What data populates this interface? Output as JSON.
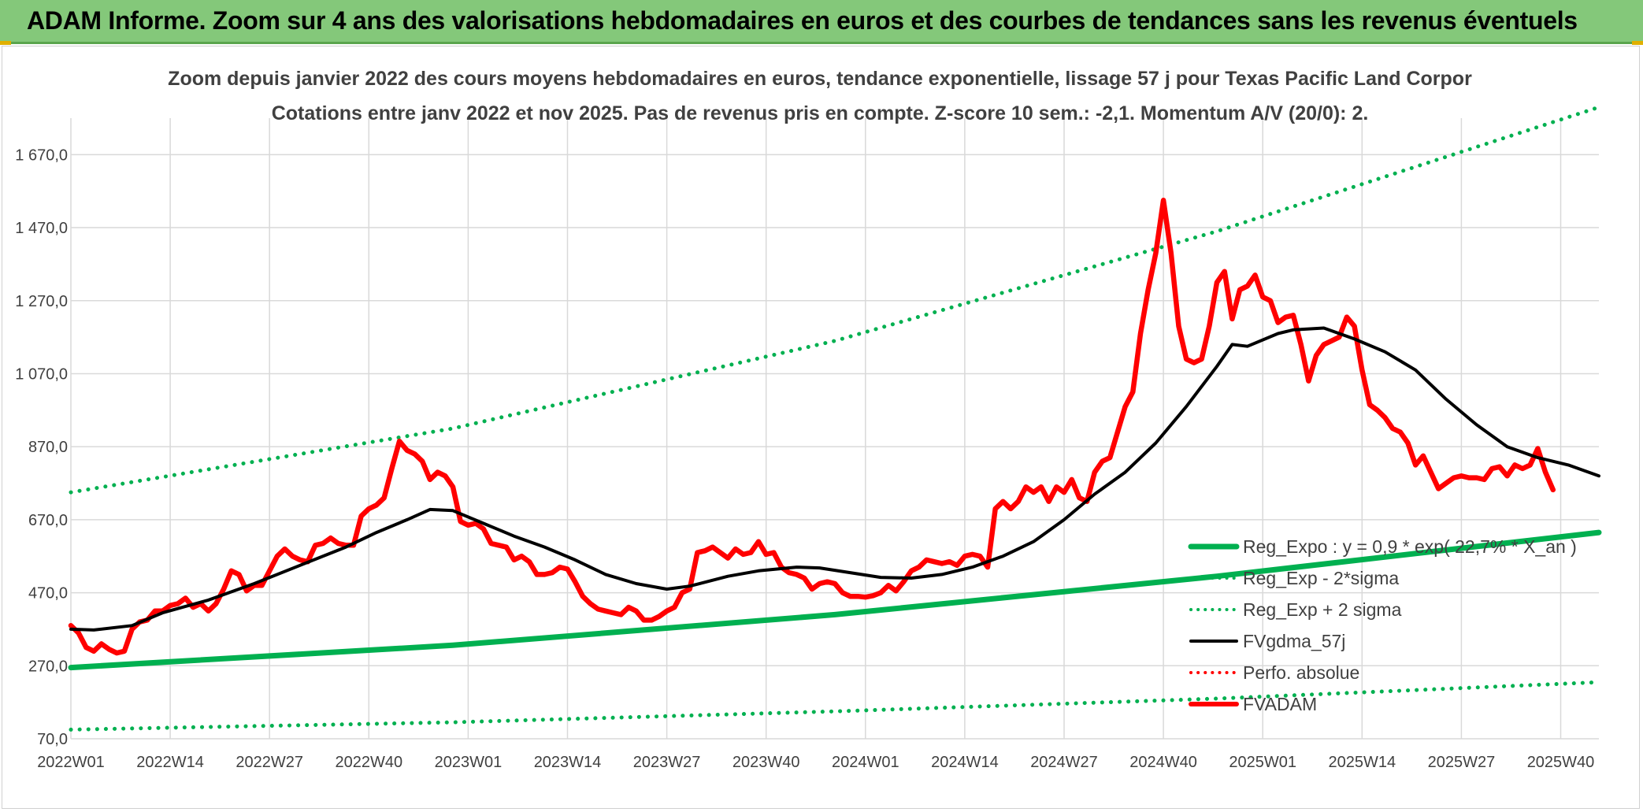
{
  "banner": {
    "title": "ADAM Informe. Zoom sur 4 ans des valorisations hebdomadaires en euros et des courbes de tendances sans les revenus éventuels"
  },
  "colors": {
    "banner_bg": "#84c87a",
    "reg_green": "#00b050",
    "black": "#000000",
    "red": "#ff0000",
    "grid": "#d9d9d9",
    "text": "#404040"
  },
  "chart_data": {
    "type": "line",
    "title_line1": "Zoom depuis janvier 2022 des cours moyens hebdomadaires en euros, tendance exponentielle, lissage 57 j pour Texas Pacific Land Corpor",
    "title_line2": "Cotations entre janv 2022 et nov 2025. Pas de revenus pris en compte. Z-score 10 sem.: -2,1. Momentum A/V (20/0): 2.",
    "xlabel": "",
    "ylabel": "",
    "ylim": [
      70,
      1770
    ],
    "y_ticks": [
      "70,0",
      "270,0",
      "470,0",
      "670,0",
      "870,0",
      "1 070,0",
      "1 270,0",
      "1 470,0",
      "1 670,0"
    ],
    "y_tick_values": [
      70,
      270,
      470,
      670,
      870,
      1070,
      1270,
      1470,
      1670
    ],
    "x_range": [
      0,
      200
    ],
    "x_ticks": [
      "2022W01",
      "2022W14",
      "2022W27",
      "2022W40",
      "2023W01",
      "2023W14",
      "2023W27",
      "2023W40",
      "2024W01",
      "2024W14",
      "2024W27",
      "2024W40",
      "2025W01",
      "2025W14",
      "2025W27",
      "2025W40"
    ],
    "x_tick_positions": [
      0,
      13,
      26,
      39,
      52,
      65,
      78,
      91,
      104,
      117,
      130,
      143,
      156,
      169,
      182,
      195
    ],
    "legend": {
      "position": "right",
      "entries": [
        {
          "name": "Reg_Expo : y = 0,9 * exp( 22,7% * X_an )",
          "style": "solid",
          "color": "#00b050"
        },
        {
          "name": "Reg_Exp - 2*sigma",
          "style": "dotted",
          "color": "#00b050"
        },
        {
          "name": "Reg_Exp + 2 sigma",
          "style": "dotted",
          "color": "#00b050"
        },
        {
          "name": "FVgdma_57j",
          "style": "solid",
          "color": "#000000"
        },
        {
          "name": "Perfo. absolue",
          "style": "dotted",
          "color": "#ff0000"
        },
        {
          "name": "FVADAM",
          "style": "solid",
          "color": "#ff0000"
        }
      ]
    },
    "series": [
      {
        "name": "Reg_Expo : y = 0,9 * exp( 22,7% * X_an )",
        "style": "solid",
        "points": [
          [
            0,
            265
          ],
          [
            50,
            326
          ],
          [
            100,
            410
          ],
          [
            150,
            515
          ],
          [
            200,
            635
          ]
        ]
      },
      {
        "name": "Reg_Exp - 2*sigma",
        "style": "dotted",
        "points": [
          [
            0,
            95
          ],
          [
            50,
            115
          ],
          [
            100,
            145
          ],
          [
            150,
            180
          ],
          [
            200,
            225
          ]
        ]
      },
      {
        "name": "Reg_Exp + 2 sigma",
        "style": "dotted",
        "points": [
          [
            0,
            745
          ],
          [
            50,
            920
          ],
          [
            100,
            1160
          ],
          [
            150,
            1460
          ],
          [
            200,
            1800
          ]
        ]
      },
      {
        "name": "FVgdma_57j",
        "style": "solid",
        "points": [
          [
            0,
            370
          ],
          [
            3,
            368
          ],
          [
            8,
            380
          ],
          [
            12,
            415
          ],
          [
            18,
            450
          ],
          [
            24,
            495
          ],
          [
            30,
            545
          ],
          [
            36,
            595
          ],
          [
            40,
            635
          ],
          [
            44,
            670
          ],
          [
            47,
            698
          ],
          [
            50,
            695
          ],
          [
            54,
            660
          ],
          [
            58,
            625
          ],
          [
            62,
            595
          ],
          [
            66,
            560
          ],
          [
            70,
            520
          ],
          [
            74,
            495
          ],
          [
            78,
            480
          ],
          [
            81,
            488
          ],
          [
            86,
            515
          ],
          [
            90,
            530
          ],
          [
            95,
            540
          ],
          [
            98,
            538
          ],
          [
            102,
            525
          ],
          [
            106,
            512
          ],
          [
            110,
            510
          ],
          [
            114,
            520
          ],
          [
            118,
            540
          ],
          [
            122,
            570
          ],
          [
            126,
            610
          ],
          [
            130,
            670
          ],
          [
            134,
            740
          ],
          [
            138,
            800
          ],
          [
            142,
            880
          ],
          [
            146,
            980
          ],
          [
            150,
            1090
          ],
          [
            152,
            1150
          ],
          [
            154,
            1145
          ],
          [
            158,
            1180
          ],
          [
            160,
            1190
          ],
          [
            164,
            1195
          ],
          [
            168,
            1165
          ],
          [
            172,
            1130
          ],
          [
            176,
            1080
          ],
          [
            180,
            1000
          ],
          [
            184,
            930
          ],
          [
            188,
            870
          ],
          [
            192,
            840
          ],
          [
            196,
            820
          ],
          [
            200,
            790
          ]
        ]
      },
      {
        "name": "FVADAM",
        "style": "solid",
        "points": [
          [
            0,
            380
          ],
          [
            1,
            360
          ],
          [
            2,
            320
          ],
          [
            3,
            310
          ],
          [
            4,
            330
          ],
          [
            5,
            315
          ],
          [
            6,
            305
          ],
          [
            7,
            310
          ],
          [
            8,
            370
          ],
          [
            9,
            390
          ],
          [
            10,
            395
          ],
          [
            11,
            420
          ],
          [
            12,
            420
          ],
          [
            13,
            435
          ],
          [
            14,
            440
          ],
          [
            15,
            455
          ],
          [
            16,
            430
          ],
          [
            17,
            440
          ],
          [
            18,
            420
          ],
          [
            19,
            440
          ],
          [
            20,
            480
          ],
          [
            21,
            530
          ],
          [
            22,
            520
          ],
          [
            23,
            475
          ],
          [
            24,
            490
          ],
          [
            25,
            490
          ],
          [
            26,
            530
          ],
          [
            27,
            570
          ],
          [
            28,
            590
          ],
          [
            29,
            570
          ],
          [
            30,
            560
          ],
          [
            31,
            555
          ],
          [
            32,
            600
          ],
          [
            33,
            605
          ],
          [
            34,
            620
          ],
          [
            35,
            605
          ],
          [
            36,
            600
          ],
          [
            37,
            600
          ],
          [
            38,
            680
          ],
          [
            39,
            700
          ],
          [
            40,
            710
          ],
          [
            41,
            730
          ],
          [
            42,
            810
          ],
          [
            43,
            885
          ],
          [
            44,
            860
          ],
          [
            45,
            850
          ],
          [
            46,
            830
          ],
          [
            47,
            780
          ],
          [
            48,
            800
          ],
          [
            49,
            790
          ],
          [
            50,
            760
          ],
          [
            51,
            665
          ],
          [
            52,
            655
          ],
          [
            53,
            660
          ],
          [
            54,
            645
          ],
          [
            55,
            605
          ],
          [
            56,
            600
          ],
          [
            57,
            595
          ],
          [
            58,
            560
          ],
          [
            59,
            570
          ],
          [
            60,
            555
          ],
          [
            61,
            520
          ],
          [
            62,
            520
          ],
          [
            63,
            525
          ],
          [
            64,
            540
          ],
          [
            65,
            535
          ],
          [
            66,
            500
          ],
          [
            67,
            460
          ],
          [
            68,
            440
          ],
          [
            69,
            425
          ],
          [
            70,
            420
          ],
          [
            71,
            415
          ],
          [
            72,
            410
          ],
          [
            73,
            430
          ],
          [
            74,
            420
          ],
          [
            75,
            395
          ],
          [
            76,
            395
          ],
          [
            77,
            405
          ],
          [
            78,
            420
          ],
          [
            79,
            430
          ],
          [
            80,
            470
          ],
          [
            81,
            480
          ],
          [
            82,
            580
          ],
          [
            83,
            585
          ],
          [
            84,
            595
          ],
          [
            85,
            580
          ],
          [
            86,
            565
          ],
          [
            87,
            590
          ],
          [
            88,
            575
          ],
          [
            89,
            580
          ],
          [
            90,
            610
          ],
          [
            91,
            575
          ],
          [
            92,
            580
          ],
          [
            93,
            540
          ],
          [
            94,
            525
          ],
          [
            95,
            520
          ],
          [
            96,
            510
          ],
          [
            97,
            480
          ],
          [
            98,
            495
          ],
          [
            99,
            500
          ],
          [
            100,
            495
          ],
          [
            101,
            470
          ],
          [
            102,
            460
          ],
          [
            103,
            460
          ],
          [
            104,
            458
          ],
          [
            105,
            462
          ],
          [
            106,
            470
          ],
          [
            107,
            490
          ],
          [
            108,
            475
          ],
          [
            109,
            500
          ],
          [
            110,
            530
          ],
          [
            111,
            540
          ],
          [
            112,
            560
          ],
          [
            113,
            555
          ],
          [
            114,
            550
          ],
          [
            115,
            555
          ],
          [
            116,
            545
          ],
          [
            117,
            570
          ],
          [
            118,
            575
          ],
          [
            119,
            570
          ],
          [
            120,
            540
          ],
          [
            121,
            700
          ],
          [
            122,
            720
          ],
          [
            123,
            700
          ],
          [
            124,
            720
          ],
          [
            125,
            760
          ],
          [
            126,
            745
          ],
          [
            127,
            760
          ],
          [
            128,
            720
          ],
          [
            129,
            760
          ],
          [
            130,
            745
          ],
          [
            131,
            780
          ],
          [
            132,
            730
          ],
          [
            133,
            720
          ],
          [
            134,
            800
          ],
          [
            135,
            830
          ],
          [
            136,
            840
          ],
          [
            137,
            910
          ],
          [
            138,
            980
          ],
          [
            139,
            1020
          ],
          [
            140,
            1180
          ],
          [
            141,
            1300
          ],
          [
            142,
            1400
          ],
          [
            143,
            1545
          ],
          [
            144,
            1400
          ],
          [
            145,
            1200
          ],
          [
            146,
            1110
          ],
          [
            147,
            1100
          ],
          [
            148,
            1110
          ],
          [
            149,
            1200
          ],
          [
            150,
            1320
          ],
          [
            151,
            1350
          ],
          [
            152,
            1220
          ],
          [
            153,
            1300
          ],
          [
            154,
            1310
          ],
          [
            155,
            1340
          ],
          [
            156,
            1280
          ],
          [
            157,
            1270
          ],
          [
            158,
            1210
          ],
          [
            159,
            1225
          ],
          [
            160,
            1230
          ],
          [
            161,
            1150
          ],
          [
            162,
            1050
          ],
          [
            163,
            1120
          ],
          [
            164,
            1150
          ],
          [
            165,
            1160
          ],
          [
            166,
            1170
          ],
          [
            167,
            1225
          ],
          [
            168,
            1200
          ],
          [
            169,
            1080
          ],
          [
            170,
            985
          ],
          [
            171,
            970
          ],
          [
            172,
            950
          ],
          [
            173,
            920
          ],
          [
            174,
            910
          ],
          [
            175,
            880
          ],
          [
            176,
            820
          ],
          [
            177,
            845
          ],
          [
            178,
            800
          ],
          [
            179,
            755
          ],
          [
            180,
            770
          ],
          [
            181,
            785
          ],
          [
            182,
            790
          ],
          [
            183,
            785
          ],
          [
            184,
            785
          ],
          [
            185,
            780
          ],
          [
            186,
            810
          ],
          [
            187,
            815
          ],
          [
            188,
            790
          ],
          [
            189,
            820
          ],
          [
            190,
            810
          ],
          [
            191,
            820
          ],
          [
            192,
            865
          ],
          [
            193,
            800
          ],
          [
            194,
            752
          ]
        ]
      }
    ]
  }
}
